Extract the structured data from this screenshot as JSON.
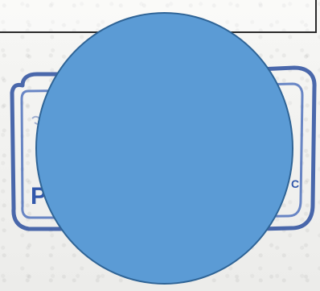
{
  "document": {
    "stamp_visible_text": {
      "left_letter": "P",
      "right_letter": "C"
    },
    "colors": {
      "paper": "#f3f3f1",
      "box_border": "#2b2b2b",
      "stamp_ink": "#2850a8",
      "redaction_fill": "#5b9bd5",
      "redaction_border": "#2f6496"
    }
  }
}
